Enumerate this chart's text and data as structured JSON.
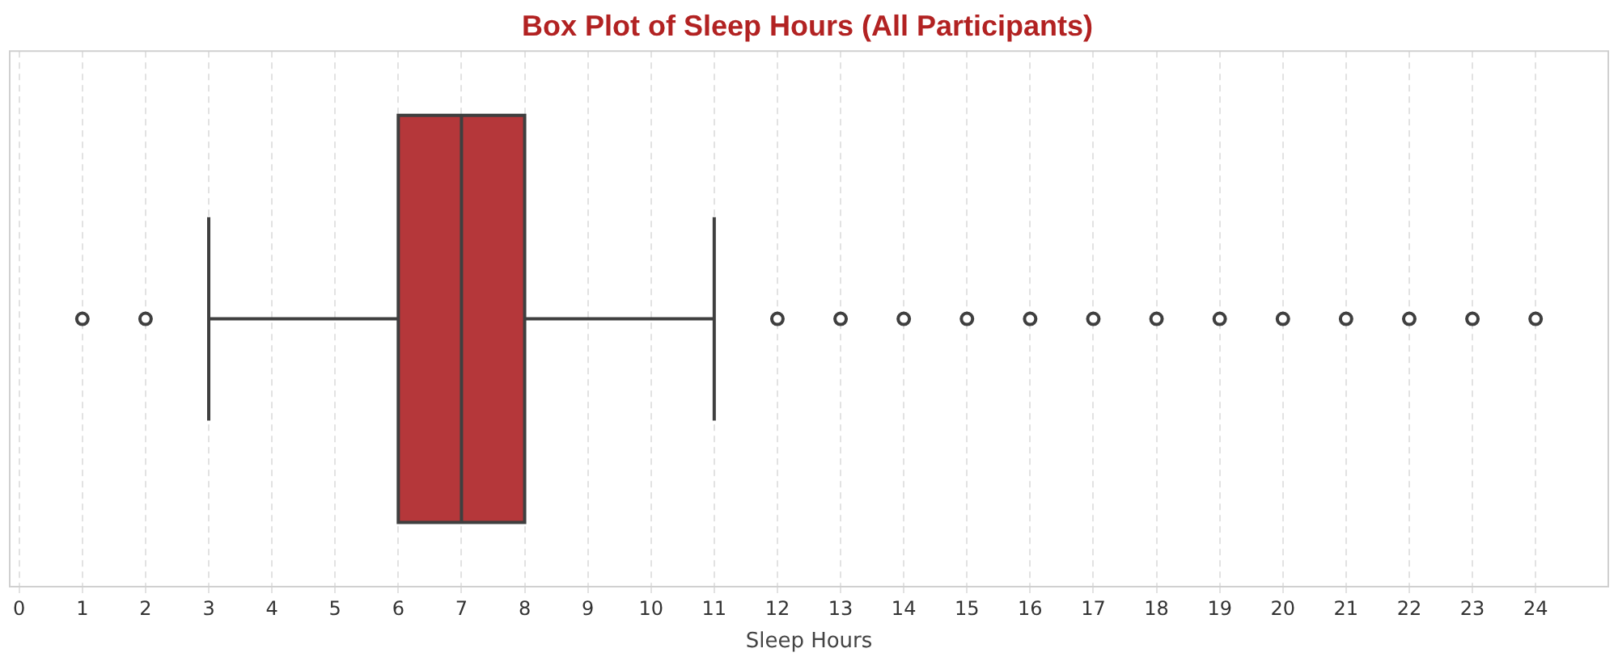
{
  "chart_data": {
    "type": "box",
    "title": "Box Plot of Sleep Hours (All Participants)",
    "xlabel": "Sleep Hours",
    "orientation": "horizontal",
    "categories": [
      null
    ],
    "color": "#b5373a",
    "boxes": [
      {
        "low": 3,
        "q1": 6,
        "median": 7,
        "q3": 8,
        "high": 11,
        "outliers": [
          1,
          2,
          12,
          13,
          14,
          15,
          16,
          17,
          18,
          19,
          20,
          21,
          22,
          23,
          24
        ]
      }
    ],
    "xlim": [
      -0.15,
      25.15
    ],
    "xticks": [
      0,
      1,
      2,
      3,
      4,
      5,
      6,
      7,
      8,
      9,
      10,
      11,
      12,
      13,
      14,
      15,
      16,
      17,
      18,
      19,
      20,
      21,
      22,
      23,
      24
    ],
    "grid": "x",
    "tick_labels": "x"
  }
}
